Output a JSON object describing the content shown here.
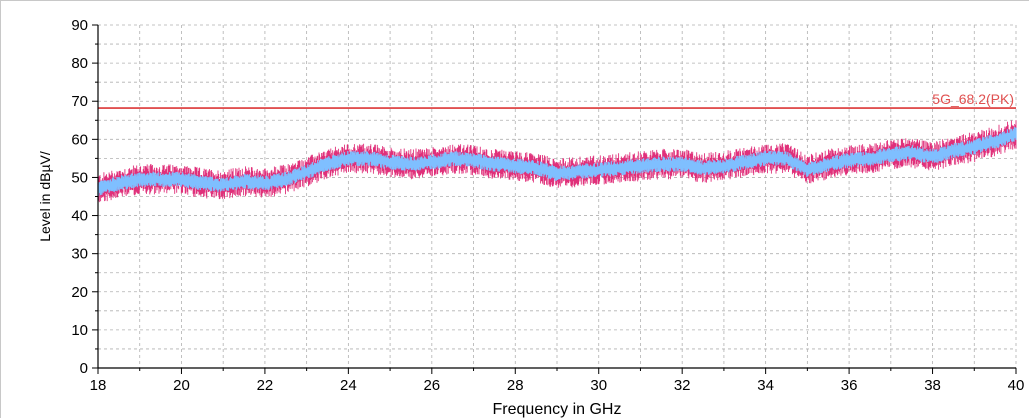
{
  "chart_data": {
    "type": "line",
    "title": "",
    "xlabel": "Frequency in GHz",
    "ylabel": "Level in dBµV/",
    "xlim": [
      18,
      40
    ],
    "ylim": [
      0,
      90
    ],
    "x_ticks": [
      18,
      20,
      22,
      24,
      26,
      28,
      30,
      32,
      34,
      36,
      38,
      40
    ],
    "y_ticks": [
      0,
      10,
      20,
      30,
      40,
      50,
      60,
      70,
      80,
      90
    ],
    "grid": true,
    "colors": {
      "limit": "#e05050",
      "trace_peak": "#e0307a",
      "trace_avg": "#7fbfff",
      "grid": "#b0b0b0"
    },
    "limit_line": {
      "label": "5G_68.2(PK)",
      "y": 68.2
    },
    "series": [
      {
        "style": "noisy-band",
        "x": [
          18,
          18.5,
          19,
          19.5,
          20,
          20.5,
          21,
          21.5,
          22,
          22.5,
          23,
          23.5,
          24,
          24.5,
          25,
          25.5,
          26,
          26.5,
          27,
          27.5,
          28,
          28.5,
          29,
          29.5,
          30,
          30.5,
          31,
          31.5,
          32,
          32.5,
          33,
          33.5,
          34,
          34.5,
          35,
          35.5,
          36,
          36.5,
          37,
          37.5,
          38,
          38.5,
          39,
          39.5,
          40
        ],
        "values": [
          47,
          48.5,
          49.5,
          49.5,
          49.5,
          48.5,
          48,
          49,
          48.5,
          49.5,
          51.5,
          53.5,
          55,
          55,
          54,
          53.5,
          54,
          55,
          54.5,
          53.5,
          53,
          52.5,
          51,
          51.5,
          52,
          52.5,
          53,
          53.5,
          53.5,
          52.5,
          53,
          54,
          55,
          55,
          52,
          53.5,
          54.5,
          55,
          56,
          56.5,
          55.5,
          57,
          58,
          59.5,
          61.5
        ]
      }
    ]
  }
}
